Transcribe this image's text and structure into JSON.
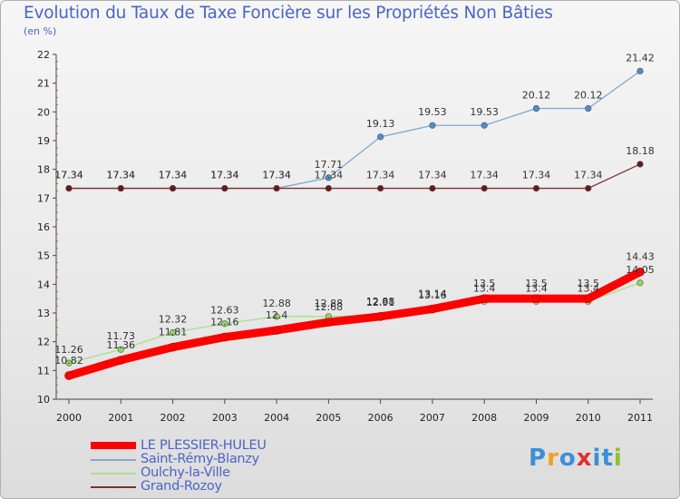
{
  "chart_data": {
    "type": "line",
    "title": "Evolution du Taux de Taxe Foncière sur les Propriétés Non Bâties",
    "subtitle": "(en %)",
    "xlabel": "",
    "ylabel": "",
    "ylim": [
      10,
      22
    ],
    "yticks": [
      10,
      11,
      12,
      13,
      14,
      15,
      16,
      17,
      18,
      19,
      20,
      21,
      22
    ],
    "categories": [
      "2000",
      "2001",
      "2002",
      "2003",
      "2004",
      "2005",
      "2006",
      "2007",
      "2008",
      "2009",
      "2010",
      "2011"
    ],
    "series": [
      {
        "name": "LE PLESSIER-HULEU",
        "color": "#ff0000",
        "marker_color": "#ff0000",
        "values": [
          10.82,
          11.36,
          11.81,
          12.16,
          12.4,
          12.68,
          12.88,
          13.14,
          13.5,
          13.5,
          13.5,
          14.43
        ],
        "labels": [
          "10.82",
          "11.36",
          "11.81",
          "12.16",
          "12.4",
          "12.68",
          "12.88",
          "13.14",
          "13.5",
          "13.5",
          "13.5",
          "14.43"
        ]
      },
      {
        "name": "Saint-Rémy-Blanzy",
        "color": "#7fa7d0",
        "marker_color": "#4a8fd0",
        "values": [
          17.34,
          17.34,
          17.34,
          17.34,
          17.34,
          17.71,
          19.13,
          19.53,
          19.53,
          20.12,
          20.12,
          21.42
        ],
        "labels": [
          "17.34",
          "17.34",
          "17.34",
          "17.34",
          "17.34",
          "17.71",
          "19.13",
          "19.53",
          "19.53",
          "20.12",
          "20.12",
          "21.42"
        ]
      },
      {
        "name": "Oulchy-la-Ville",
        "color": "#a8e08a",
        "marker_color": "#90d85a",
        "values": [
          11.26,
          11.73,
          12.32,
          12.63,
          12.88,
          12.88,
          12.91,
          13.16,
          13.4,
          13.4,
          13.4,
          14.05
        ],
        "labels": [
          "11.26",
          "11.73",
          "12.32",
          "12.63",
          "12.88",
          "12.88",
          "12.91",
          "13.16",
          "13.4",
          "13.4",
          "13.4",
          "14.05"
        ]
      },
      {
        "name": "Grand-Rozoy",
        "color": "#7a3030",
        "marker_color": "#6a1818",
        "values": [
          17.34,
          17.34,
          17.34,
          17.34,
          17.34,
          17.34,
          17.34,
          17.34,
          17.34,
          17.34,
          17.34,
          18.18
        ],
        "labels": [
          "17.34",
          "17.34",
          "17.34",
          "17.34",
          "17.34",
          "17.34",
          "17.34",
          "17.34",
          "17.34",
          "17.34",
          "17.34",
          "18.18"
        ]
      }
    ],
    "legend": "bottom-left",
    "grid": false
  },
  "brand": {
    "text": "Proxiti",
    "letters": [
      "P",
      "r",
      "o",
      "x",
      "i",
      "t",
      "i"
    ],
    "colors": [
      "#3a8fd8",
      "#f0a020",
      "#3a8fd8",
      "#e03030",
      "#3a8fd8",
      "#3a8fd8",
      "#90c030"
    ]
  }
}
